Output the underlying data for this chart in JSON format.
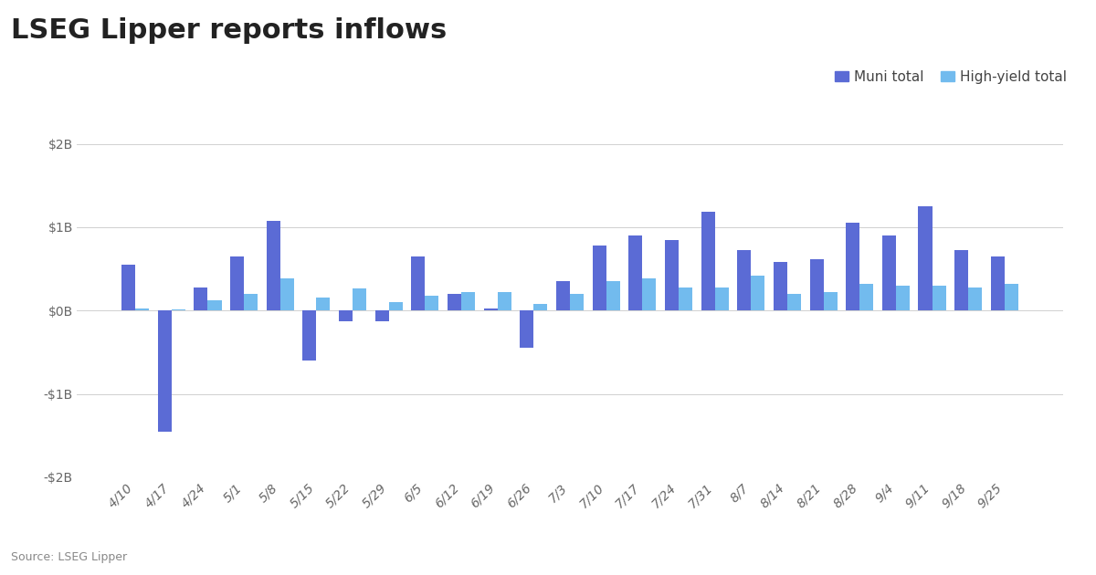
{
  "title": "LSEG Lipper reports inflows",
  "source": "Source: LSEG Lipper",
  "categories": [
    "4/10",
    "4/17",
    "4/24",
    "5/1",
    "5/8",
    "5/15",
    "5/22",
    "5/29",
    "6/5",
    "6/12",
    "6/19",
    "6/26",
    "7/3",
    "7/10",
    "7/17",
    "7/24",
    "7/31",
    "8/7",
    "8/14",
    "8/21",
    "8/28",
    "9/4",
    "9/11",
    "9/18",
    "9/25"
  ],
  "muni_total": [
    0.55,
    -1.45,
    0.28,
    0.65,
    1.08,
    -0.6,
    -0.13,
    -0.13,
    0.65,
    0.2,
    0.02,
    -0.45,
    0.35,
    0.78,
    0.9,
    0.85,
    1.18,
    0.72,
    0.58,
    0.62,
    1.05,
    0.9,
    1.25,
    0.72,
    0.65
  ],
  "hy_total": [
    0.02,
    0.01,
    0.12,
    0.2,
    0.38,
    0.15,
    0.27,
    0.1,
    0.18,
    0.22,
    0.22,
    0.08,
    0.2,
    0.35,
    0.38,
    0.28,
    0.28,
    0.42,
    0.2,
    0.22,
    0.32,
    0.3,
    0.3,
    0.28,
    0.32
  ],
  "muni_color": "#5B6BD5",
  "hy_color": "#72BBEE",
  "ylim": [
    -2.0,
    2.0
  ],
  "yticks": [
    -2.0,
    -1.0,
    0.0,
    1.0,
    2.0
  ],
  "ytick_labels": [
    "-$2B",
    "-$1B",
    "$0B",
    "$1B",
    "$2B"
  ],
  "background_color": "#ffffff",
  "grid_color": "#d0d0d0",
  "title_fontsize": 22,
  "tick_fontsize": 10,
  "legend_fontsize": 11,
  "bar_width": 0.38
}
